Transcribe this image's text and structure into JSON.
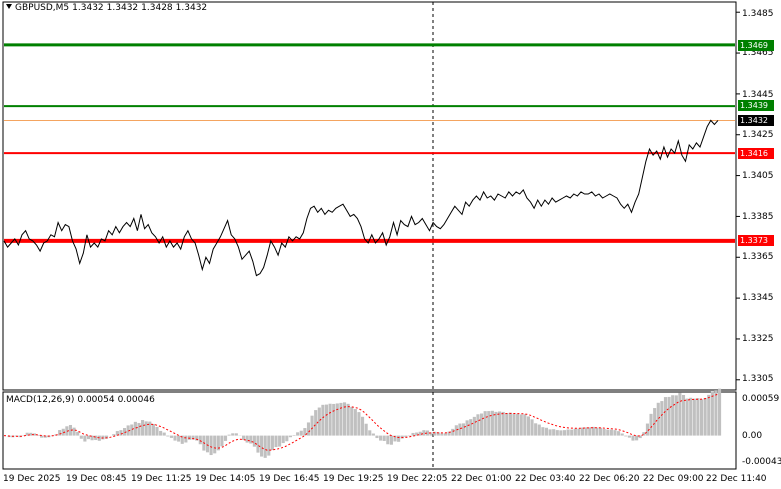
{
  "header": {
    "symbol": "GBPUSD,M5",
    "open": "1.3432",
    "high": "1.3432",
    "low": "1.3428",
    "close": "1.3432"
  },
  "macd": {
    "label": "MACD(12,26,9)",
    "main": "0.00054",
    "signal": "0.00046",
    "axis_labels": [
      "0.00059",
      "0.00",
      "-0.00043"
    ],
    "histogram_color": "#c0c0c0",
    "signal_color": "#ff0000"
  },
  "price_axis": {
    "labels": [
      "1.3485",
      "1.3465",
      "1.3445",
      "1.3425",
      "1.3405",
      "1.3385",
      "1.3365",
      "1.3345",
      "1.3325",
      "1.3305"
    ]
  },
  "levels": [
    {
      "price": "1.3469",
      "color": "#008000"
    },
    {
      "price": "1.3439",
      "color": "#008000"
    },
    {
      "price": "1.3432",
      "color": "#000000"
    },
    {
      "price": "1.3416",
      "color": "#ff0000"
    },
    {
      "price": "1.3373",
      "color": "#ff0000"
    }
  ],
  "time_axis": {
    "labels": [
      "19 Dec 2025",
      "19 Dec 08:45",
      "19 Dec 11:25",
      "19 Dec 14:05",
      "19 Dec 16:45",
      "19 Dec 19:25",
      "19 Dec 22:05",
      "22 Dec 01:00",
      "22 Dec 03:40",
      "22 Dec 06:20",
      "22 Dec 09:00",
      "22 Dec 11:40"
    ]
  },
  "chart_data": {
    "type": "line",
    "series": [
      {
        "values": [
          1.3373,
          1.337,
          1.3372,
          1.3374,
          1.3371,
          1.3376,
          1.3378,
          1.3374,
          1.3373,
          1.3371,
          1.3368,
          1.3372,
          1.3373,
          1.3376,
          1.3375,
          1.3382,
          1.3378,
          1.3381,
          1.338,
          1.3373,
          1.3369,
          1.3362,
          1.3367,
          1.3376,
          1.337,
          1.3372,
          1.337,
          1.3374,
          1.3373,
          1.3378,
          1.3376,
          1.338,
          1.3377,
          1.338,
          1.3382,
          1.338,
          1.3384,
          1.3378,
          1.3386,
          1.3379,
          1.3381,
          1.3377,
          1.3375,
          1.3372,
          1.3375,
          1.337,
          1.3373,
          1.337,
          1.3372,
          1.3369,
          1.3375,
          1.3378,
          1.3374,
          1.3372,
          1.3366,
          1.3359,
          1.3365,
          1.3362,
          1.3369,
          1.3372,
          1.3375,
          1.3379,
          1.3383,
          1.3376,
          1.3374,
          1.337,
          1.3364,
          1.3366,
          1.3368,
          1.3363,
          1.3356,
          1.3357,
          1.336,
          1.3366,
          1.3373,
          1.337,
          1.3366,
          1.3372,
          1.337,
          1.3375,
          1.3373,
          1.3375,
          1.3374,
          1.3377,
          1.3384,
          1.3389,
          1.339,
          1.3387,
          1.3389,
          1.3386,
          1.3388,
          1.3387,
          1.3389,
          1.339,
          1.3391,
          1.3388,
          1.3385,
          1.3386,
          1.3384,
          1.338,
          1.3374,
          1.3372,
          1.3376,
          1.3372,
          1.3374,
          1.3377,
          1.3371,
          1.3375,
          1.3382,
          1.3376,
          1.3383,
          1.3381,
          1.338,
          1.3385,
          1.3381,
          1.3382,
          1.3384,
          1.3381,
          1.3378,
          1.3382,
          1.338,
          1.3379,
          1.3381,
          1.3384,
          1.3387,
          1.339,
          1.3388,
          1.3386,
          1.3392,
          1.339,
          1.3393,
          1.3395,
          1.3393,
          1.3397,
          1.3394,
          1.3395,
          1.3393,
          1.3396,
          1.3395,
          1.3394,
          1.3397,
          1.3395,
          1.3397,
          1.3396,
          1.3398,
          1.3394,
          1.3392,
          1.3389,
          1.3393,
          1.339,
          1.3393,
          1.3391,
          1.3394,
          1.3392,
          1.3393,
          1.3394,
          1.3395,
          1.3394,
          1.3396,
          1.3395,
          1.3397,
          1.3396,
          1.3396,
          1.3397,
          1.3395,
          1.3396,
          1.3394,
          1.3395,
          1.3396,
          1.3395,
          1.3394,
          1.3391,
          1.3389,
          1.3391,
          1.3387,
          1.3392,
          1.3396,
          1.3404,
          1.3412,
          1.3418,
          1.3415,
          1.3417,
          1.3413,
          1.3419,
          1.3414,
          1.3418,
          1.3416,
          1.3422,
          1.3415,
          1.3412,
          1.342,
          1.3418,
          1.3421,
          1.3419,
          1.3424,
          1.3429,
          1.3432,
          1.343,
          1.3432
        ]
      }
    ],
    "ylim": [
      1.33,
      1.349
    ],
    "grid": false
  }
}
